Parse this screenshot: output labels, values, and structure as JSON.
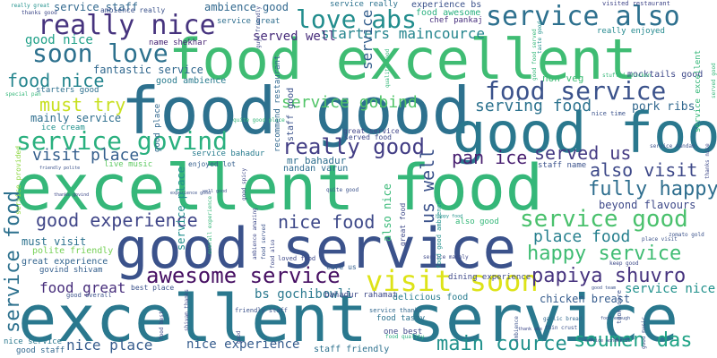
{
  "words": [
    {
      "text": "excellent service",
      "color": "#2a788e"
    },
    {
      "text": "good service",
      "color": "#3b528b"
    },
    {
      "text": "excellent food",
      "color": "#35b779"
    },
    {
      "text": "food good",
      "color": "#2d718e"
    },
    {
      "text": "food excellent",
      "color": "#3fbc73"
    },
    {
      "text": "good food",
      "color": "#2a788e"
    },
    {
      "text": "really nice",
      "color": "#46337e"
    },
    {
      "text": "service also",
      "color": "#2d708e"
    },
    {
      "text": "visit soon",
      "color": "#dde318"
    },
    {
      "text": "love abs",
      "color": "#228d8d"
    },
    {
      "text": "soon love",
      "color": "#2d718e"
    },
    {
      "text": "service govind",
      "color": "#2ab07f"
    },
    {
      "text": "food service",
      "color": "#3b528b"
    },
    {
      "text": "service good",
      "color": "#4ac16d"
    },
    {
      "text": "happy service",
      "color": "#3fbc73"
    },
    {
      "text": "papiya shuvro",
      "color": "#46337e"
    },
    {
      "text": "awesome service",
      "color": "#471063"
    },
    {
      "text": "really good",
      "color": "#433e85"
    },
    {
      "text": "fully happy",
      "color": "#2e6e8e"
    },
    {
      "text": "service food",
      "color": "#2d718e"
    },
    {
      "text": "service",
      "color": "#355f8d"
    },
    {
      "text": "soumen das",
      "color": "#20a386"
    },
    {
      "text": "main cource",
      "color": "#21918c"
    },
    {
      "text": "nice food",
      "color": "#3e4989"
    },
    {
      "text": "good experience",
      "color": "#404688"
    },
    {
      "text": "must try",
      "color": "#c8e020"
    },
    {
      "text": "food nice",
      "color": "#25858e"
    },
    {
      "text": "also visit",
      "color": "#3e4989"
    },
    {
      "text": "served us",
      "color": "#443a83"
    },
    {
      "text": "pan ice",
      "color": "#481f70"
    },
    {
      "text": "visit place",
      "color": "#355f8d"
    },
    {
      "text": "starters maincource",
      "color": "#25858e"
    },
    {
      "text": "good nice",
      "color": "#1fa088"
    },
    {
      "text": "served well",
      "color": "#472c7a"
    },
    {
      "text": "service gobind",
      "color": "#52c569"
    },
    {
      "text": "serving food",
      "color": "#2c728e"
    },
    {
      "text": "service place",
      "color": "#218f8d"
    },
    {
      "text": "place food",
      "color": "#27808e"
    },
    {
      "text": "service nice",
      "color": "#21918c"
    },
    {
      "text": "food great",
      "color": "#472d7b"
    },
    {
      "text": "nice place",
      "color": "#365c8d"
    },
    {
      "text": "nice experience",
      "color": "#365c8d"
    },
    {
      "text": "bs gochibowli",
      "color": "#2a788e"
    },
    {
      "text": "us well",
      "color": "#3b528b"
    },
    {
      "text": "also nice",
      "color": "#38b977"
    },
    {
      "text": "service staff",
      "color": "#31688e"
    },
    {
      "text": "ambience good",
      "color": "#31688e"
    },
    {
      "text": "fantastic service",
      "color": "#31688e"
    },
    {
      "text": "mainly service",
      "color": "#2e6e8e"
    },
    {
      "text": "ice cream",
      "color": "#21918c"
    },
    {
      "text": "non veg",
      "color": "#3dbc74"
    },
    {
      "text": "pork ribs",
      "color": "#31688e"
    },
    {
      "text": "beyond flavours",
      "color": "#3e4989"
    },
    {
      "text": "must visit",
      "color": "#2c728e"
    },
    {
      "text": "polite friendly",
      "color": "#75d054"
    },
    {
      "text": "great experience",
      "color": "#32648e"
    },
    {
      "text": "good ambience",
      "color": "#297b8e"
    },
    {
      "text": "service bahadur",
      "color": "#287c8e"
    },
    {
      "text": "mr bahadur",
      "color": "#2e6e8e"
    },
    {
      "text": "nandan varun",
      "color": "#2f6b8e"
    },
    {
      "text": "served food",
      "color": "#3e4989"
    },
    {
      "text": "great service",
      "color": "#404588"
    },
    {
      "text": "really enjoyed",
      "color": "#23898e"
    },
    {
      "text": "name shekhar",
      "color": "#482475"
    },
    {
      "text": "chef pankaj",
      "color": "#472f7d"
    },
    {
      "text": "food awesome",
      "color": "#2ab07f"
    },
    {
      "text": "experience bs",
      "color": "#3b528b"
    },
    {
      "text": "service really",
      "color": "#2c728e"
    },
    {
      "text": "ambience really",
      "color": "#3b528b"
    },
    {
      "text": "staff friendly",
      "color": "#2d718e"
    },
    {
      "text": "delicious food",
      "color": "#287c8e"
    },
    {
      "text": "chicken breast",
      "color": "#365c8d"
    },
    {
      "text": "bahadur rahamat",
      "color": "#3e4989"
    },
    {
      "text": "dining experience",
      "color": "#3e4989"
    },
    {
      "text": "best place",
      "color": "#3b528b"
    },
    {
      "text": "one best",
      "color": "#3e4989"
    },
    {
      "text": "food tasty",
      "color": "#2c728e"
    },
    {
      "text": "live music",
      "color": "#5ec962"
    },
    {
      "text": "enjoyed lot",
      "color": "#355f8d"
    },
    {
      "text": "starters good",
      "color": "#2d708e"
    },
    {
      "text": "govind shivam",
      "color": "#355f8d"
    },
    {
      "text": "service provided",
      "color": "#8fd744"
    },
    {
      "text": "care us",
      "color": "#355f8d"
    },
    {
      "text": "great food",
      "color": "#3e4989"
    },
    {
      "text": "food quality",
      "color": "#2ab07f"
    },
    {
      "text": "good overall",
      "color": "#3b528b"
    },
    {
      "text": "nice service",
      "color": "#2a788e"
    },
    {
      "text": "good staff",
      "color": "#31688e"
    },
    {
      "text": "service great",
      "color": "#2e6e8e"
    },
    {
      "text": "friendly staff",
      "color": "#3b528b"
    },
    {
      "text": "service thanks",
      "color": "#31688e"
    },
    {
      "text": "service nandan",
      "color": "#3b528b"
    },
    {
      "text": "visited restaurant",
      "color": "#404688"
    },
    {
      "text": "thanks good",
      "color": "#3e4989"
    },
    {
      "text": "service excellent",
      "color": "#35b779"
    },
    {
      "text": "really great",
      "color": "#21918c"
    },
    {
      "text": "thanks nice",
      "color": "#3e4989"
    },
    {
      "text": "zomato gold",
      "color": "#3b528b"
    },
    {
      "text": "good team",
      "color": "#3b528b"
    },
    {
      "text": "keep good",
      "color": "#3e4989"
    },
    {
      "text": "place visit",
      "color": "#3b528b"
    },
    {
      "text": "good food served",
      "color": "#35b779"
    },
    {
      "text": "nice time",
      "color": "#3b528b"
    },
    {
      "text": "took care",
      "color": "#3b528b"
    },
    {
      "text": "food good ambience",
      "color": "#21918c"
    },
    {
      "text": "staff name",
      "color": "#3b528b"
    },
    {
      "text": "quite good",
      "color": "#3b528b"
    },
    {
      "text": "well good",
      "color": "#3b528b"
    },
    {
      "text": "good spicy",
      "color": "#3e4989"
    },
    {
      "text": "loved food",
      "color": "#3e4989"
    },
    {
      "text": "food also",
      "color": "#3e4989"
    },
    {
      "text": "happy food",
      "color": "#21918c"
    },
    {
      "text": "also good",
      "color": "#35b779"
    },
    {
      "text": "garlic bread",
      "color": "#31688e"
    },
    {
      "text": "thin crust",
      "color": "#3b528b"
    },
    {
      "text": "thank abs",
      "color": "#3e4989"
    },
    {
      "text": "food enough",
      "color": "#3b528b"
    },
    {
      "text": "service wonderful",
      "color": "#3e4989"
    },
    {
      "text": "good place",
      "color": "#31688e"
    },
    {
      "text": "staff good",
      "color": "#3b528b"
    },
    {
      "text": "ambience amazing",
      "color": "#3e4989"
    },
    {
      "text": "quality food",
      "color": "#35b779"
    },
    {
      "text": "taste good",
      "color": "#3e4989"
    },
    {
      "text": "served good",
      "color": "#35b779"
    },
    {
      "text": "mocktails good",
      "color": "#21918c"
    },
    {
      "text": "stuffed chicken",
      "color": "#35b779"
    },
    {
      "text": "special pan",
      "color": "#3e4989"
    },
    {
      "text": "thanks govind",
      "color": "#3b528b"
    },
    {
      "text": "friendly polite",
      "color": "#3e4989"
    },
    {
      "text": "guys friendly",
      "color": "#3e4989"
    },
    {
      "text": "food best",
      "color": "#3e4989"
    },
    {
      "text": "shivam thanks",
      "color": "#3b528b"
    },
    {
      "text": "experience good",
      "color": "#31688e"
    },
    {
      "text": "recommend restaurant",
      "color": "#35b779"
    },
    {
      "text": "overall experience",
      "color": "#3b528b"
    },
    {
      "text": "food served",
      "color": "#3e4989"
    },
    {
      "text": "service mainly",
      "color": "#3b528b"
    },
    {
      "text": "ambience",
      "color": "#3b528b"
    },
    {
      "text": "good music",
      "color": "#35b779"
    },
    {
      "text": "quite good place",
      "color": "#3e4989"
    },
    {
      "text": "good",
      "color": "#3b528b"
    }
  ]
}
